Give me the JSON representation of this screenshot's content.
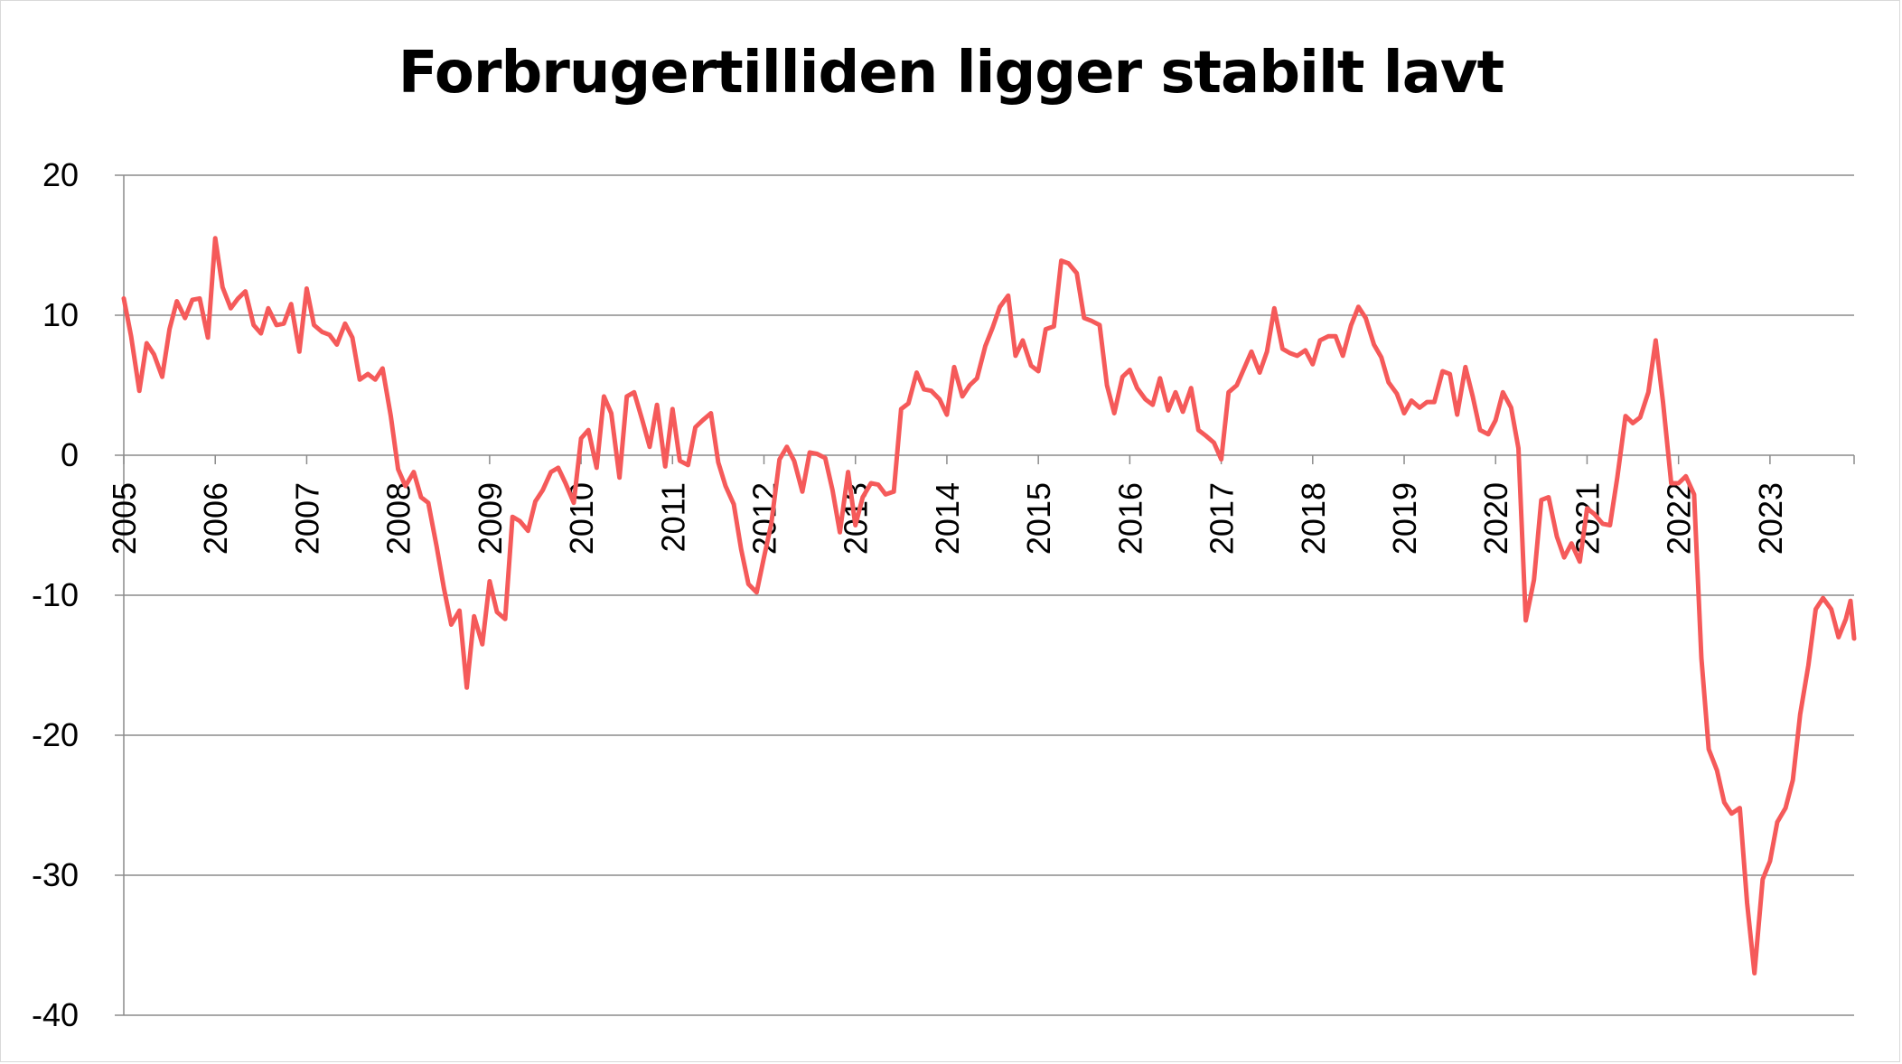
{
  "chart_data": {
    "type": "line",
    "title": "Forbrugertilliden ligger stabilt lavt",
    "xlabel": "",
    "ylabel": "",
    "ylim": [
      -40,
      20
    ],
    "xlim": [
      2005,
      2023.92
    ],
    "grid": "horizontal",
    "legend": "none",
    "y_ticks": [
      20,
      10,
      0,
      -10,
      -20,
      -30,
      -40
    ],
    "x_ticks": [
      "2005",
      "2006",
      "2007",
      "2008",
      "2009",
      "2010",
      "2011",
      "2012",
      "2013",
      "2014",
      "2015",
      "2016",
      "2017",
      "2018",
      "2019",
      "2020",
      "2021",
      "2022",
      "2023"
    ],
    "series": [
      {
        "name": "",
        "color": "#f55a5a",
        "points": [
          [
            2005.0,
            11.2
          ],
          [
            2005.08,
            8.5
          ],
          [
            2005.17,
            4.6
          ],
          [
            2005.25,
            8.0
          ],
          [
            2005.33,
            7.2
          ],
          [
            2005.42,
            5.6
          ],
          [
            2005.5,
            9.0
          ],
          [
            2005.58,
            11.0
          ],
          [
            2005.67,
            9.8
          ],
          [
            2005.75,
            11.1
          ],
          [
            2005.83,
            11.2
          ],
          [
            2005.92,
            8.4
          ],
          [
            2006.0,
            15.5
          ],
          [
            2006.08,
            12.0
          ],
          [
            2006.17,
            10.5
          ],
          [
            2006.25,
            11.2
          ],
          [
            2006.33,
            11.7
          ],
          [
            2006.42,
            9.3
          ],
          [
            2006.5,
            8.7
          ],
          [
            2006.58,
            10.5
          ],
          [
            2006.67,
            9.3
          ],
          [
            2006.75,
            9.4
          ],
          [
            2006.83,
            10.8
          ],
          [
            2006.92,
            7.4
          ],
          [
            2007.0,
            11.9
          ],
          [
            2007.08,
            9.3
          ],
          [
            2007.17,
            8.8
          ],
          [
            2007.25,
            8.6
          ],
          [
            2007.33,
            7.9
          ],
          [
            2007.42,
            9.4
          ],
          [
            2007.5,
            8.4
          ],
          [
            2007.58,
            5.4
          ],
          [
            2007.67,
            5.8
          ],
          [
            2007.75,
            5.4
          ],
          [
            2007.83,
            6.2
          ],
          [
            2007.92,
            2.8
          ],
          [
            2008.0,
            -1.0
          ],
          [
            2008.08,
            -2.2
          ],
          [
            2008.17,
            -1.2
          ],
          [
            2008.25,
            -3.0
          ],
          [
            2008.33,
            -3.4
          ],
          [
            2008.42,
            -6.5
          ],
          [
            2008.5,
            -9.5
          ],
          [
            2008.58,
            -12.1
          ],
          [
            2008.67,
            -11.1
          ],
          [
            2008.75,
            -16.6
          ],
          [
            2008.83,
            -11.5
          ],
          [
            2008.92,
            -13.5
          ],
          [
            2009.0,
            -9.0
          ],
          [
            2009.08,
            -11.2
          ],
          [
            2009.17,
            -11.7
          ],
          [
            2009.25,
            -4.4
          ],
          [
            2009.33,
            -4.7
          ],
          [
            2009.42,
            -5.4
          ],
          [
            2009.5,
            -3.3
          ],
          [
            2009.58,
            -2.5
          ],
          [
            2009.67,
            -1.2
          ],
          [
            2009.75,
            -0.9
          ],
          [
            2009.83,
            -2.0
          ],
          [
            2009.92,
            -3.4
          ],
          [
            2010.0,
            1.2
          ],
          [
            2010.08,
            1.8
          ],
          [
            2010.17,
            -0.9
          ],
          [
            2010.25,
            4.2
          ],
          [
            2010.33,
            3.0
          ],
          [
            2010.42,
            -1.6
          ],
          [
            2010.5,
            4.2
          ],
          [
            2010.58,
            4.5
          ],
          [
            2010.67,
            2.5
          ],
          [
            2010.75,
            0.6
          ],
          [
            2010.83,
            3.6
          ],
          [
            2010.92,
            -0.8
          ],
          [
            2011.0,
            3.3
          ],
          [
            2011.08,
            -0.4
          ],
          [
            2011.17,
            -0.7
          ],
          [
            2011.25,
            2.0
          ],
          [
            2011.33,
            2.5
          ],
          [
            2011.42,
            3.0
          ],
          [
            2011.5,
            -0.5
          ],
          [
            2011.58,
            -2.2
          ],
          [
            2011.67,
            -3.5
          ],
          [
            2011.75,
            -6.7
          ],
          [
            2011.83,
            -9.2
          ],
          [
            2011.92,
            -9.8
          ],
          [
            2012.0,
            -7.3
          ],
          [
            2012.08,
            -4.9
          ],
          [
            2012.17,
            -0.3
          ],
          [
            2012.25,
            0.6
          ],
          [
            2012.33,
            -0.4
          ],
          [
            2012.42,
            -2.6
          ],
          [
            2012.5,
            0.2
          ],
          [
            2012.58,
            0.1
          ],
          [
            2012.67,
            -0.2
          ],
          [
            2012.75,
            -2.5
          ],
          [
            2012.83,
            -5.5
          ],
          [
            2012.92,
            -1.2
          ],
          [
            2013.0,
            -5.0
          ],
          [
            2013.08,
            -3.0
          ],
          [
            2013.17,
            -2.0
          ],
          [
            2013.25,
            -2.1
          ],
          [
            2013.33,
            -2.8
          ],
          [
            2013.42,
            -2.6
          ],
          [
            2013.5,
            3.3
          ],
          [
            2013.58,
            3.7
          ],
          [
            2013.67,
            5.9
          ],
          [
            2013.75,
            4.7
          ],
          [
            2013.83,
            4.6
          ],
          [
            2013.92,
            4.0
          ],
          [
            2014.0,
            2.9
          ],
          [
            2014.08,
            6.3
          ],
          [
            2014.17,
            4.2
          ],
          [
            2014.25,
            5.0
          ],
          [
            2014.33,
            5.5
          ],
          [
            2014.42,
            7.8
          ],
          [
            2014.5,
            9.1
          ],
          [
            2014.58,
            10.6
          ],
          [
            2014.67,
            11.4
          ],
          [
            2014.75,
            7.1
          ],
          [
            2014.83,
            8.2
          ],
          [
            2014.92,
            6.4
          ],
          [
            2015.0,
            6.0
          ],
          [
            2015.08,
            9.0
          ],
          [
            2015.17,
            9.2
          ],
          [
            2015.25,
            13.9
          ],
          [
            2015.33,
            13.7
          ],
          [
            2015.42,
            13.0
          ],
          [
            2015.5,
            9.8
          ],
          [
            2015.58,
            9.6
          ],
          [
            2015.67,
            9.3
          ],
          [
            2015.75,
            5.0
          ],
          [
            2015.83,
            3.0
          ],
          [
            2015.92,
            5.6
          ],
          [
            2016.0,
            6.1
          ],
          [
            2016.08,
            4.8
          ],
          [
            2016.17,
            4.0
          ],
          [
            2016.25,
            3.6
          ],
          [
            2016.33,
            5.5
          ],
          [
            2016.42,
            3.2
          ],
          [
            2016.5,
            4.5
          ],
          [
            2016.58,
            3.1
          ],
          [
            2016.67,
            4.8
          ],
          [
            2016.75,
            1.8
          ],
          [
            2016.83,
            1.4
          ],
          [
            2016.92,
            0.9
          ],
          [
            2017.0,
            -0.3
          ],
          [
            2017.08,
            4.5
          ],
          [
            2017.17,
            5.0
          ],
          [
            2017.25,
            6.2
          ],
          [
            2017.33,
            7.4
          ],
          [
            2017.42,
            5.9
          ],
          [
            2017.5,
            7.4
          ],
          [
            2017.58,
            10.5
          ],
          [
            2017.67,
            7.6
          ],
          [
            2017.75,
            7.3
          ],
          [
            2017.83,
            7.1
          ],
          [
            2017.92,
            7.5
          ],
          [
            2018.0,
            6.5
          ],
          [
            2018.08,
            8.2
          ],
          [
            2018.17,
            8.5
          ],
          [
            2018.25,
            8.5
          ],
          [
            2018.33,
            7.1
          ],
          [
            2018.42,
            9.3
          ],
          [
            2018.5,
            10.6
          ],
          [
            2018.58,
            9.8
          ],
          [
            2018.67,
            7.9
          ],
          [
            2018.75,
            7.0
          ],
          [
            2018.83,
            5.2
          ],
          [
            2018.92,
            4.4
          ],
          [
            2019.0,
            3.0
          ],
          [
            2019.08,
            3.9
          ],
          [
            2019.17,
            3.4
          ],
          [
            2019.25,
            3.8
          ],
          [
            2019.33,
            3.8
          ],
          [
            2019.42,
            6.0
          ],
          [
            2019.5,
            5.8
          ],
          [
            2019.58,
            2.9
          ],
          [
            2019.67,
            6.3
          ],
          [
            2019.75,
            4.2
          ],
          [
            2019.83,
            1.8
          ],
          [
            2019.92,
            1.5
          ],
          [
            2020.0,
            2.5
          ],
          [
            2020.08,
            4.5
          ],
          [
            2020.17,
            3.4
          ],
          [
            2020.25,
            0.5
          ],
          [
            2020.33,
            -11.8
          ],
          [
            2020.42,
            -8.9
          ],
          [
            2020.5,
            -3.2
          ],
          [
            2020.58,
            -3.0
          ],
          [
            2020.67,
            -5.8
          ],
          [
            2020.75,
            -7.3
          ],
          [
            2020.83,
            -6.3
          ],
          [
            2020.92,
            -7.6
          ],
          [
            2021.0,
            -3.8
          ],
          [
            2021.08,
            -4.2
          ],
          [
            2021.17,
            -4.9
          ],
          [
            2021.25,
            -5.0
          ],
          [
            2021.33,
            -1.6
          ],
          [
            2021.42,
            2.8
          ],
          [
            2021.5,
            2.3
          ],
          [
            2021.58,
            2.7
          ],
          [
            2021.67,
            4.5
          ],
          [
            2021.75,
            8.2
          ],
          [
            2021.83,
            3.8
          ],
          [
            2021.92,
            -2.0
          ],
          [
            2022.0,
            -2.0
          ],
          [
            2022.08,
            -1.5
          ],
          [
            2022.17,
            -2.8
          ],
          [
            2022.25,
            -14.5
          ],
          [
            2022.33,
            -21.0
          ],
          [
            2022.42,
            -22.5
          ],
          [
            2022.5,
            -24.8
          ],
          [
            2022.58,
            -25.6
          ],
          [
            2022.67,
            -25.2
          ],
          [
            2022.75,
            -32.0
          ],
          [
            2022.83,
            -37.0
          ],
          [
            2022.92,
            -30.3
          ],
          [
            2023.0,
            -29.0
          ],
          [
            2023.08,
            -26.2
          ],
          [
            2023.17,
            -25.2
          ],
          [
            2023.25,
            -23.2
          ],
          [
            2023.33,
            -18.5
          ],
          [
            2023.42,
            -15.0
          ],
          [
            2023.5,
            -11.0
          ],
          [
            2023.58,
            -10.2
          ],
          [
            2023.67,
            -11.0
          ],
          [
            2023.75,
            -13.0
          ],
          [
            2023.83,
            -11.7
          ],
          [
            2023.88,
            -10.4
          ],
          [
            2023.92,
            -13.1
          ]
        ]
      }
    ]
  }
}
